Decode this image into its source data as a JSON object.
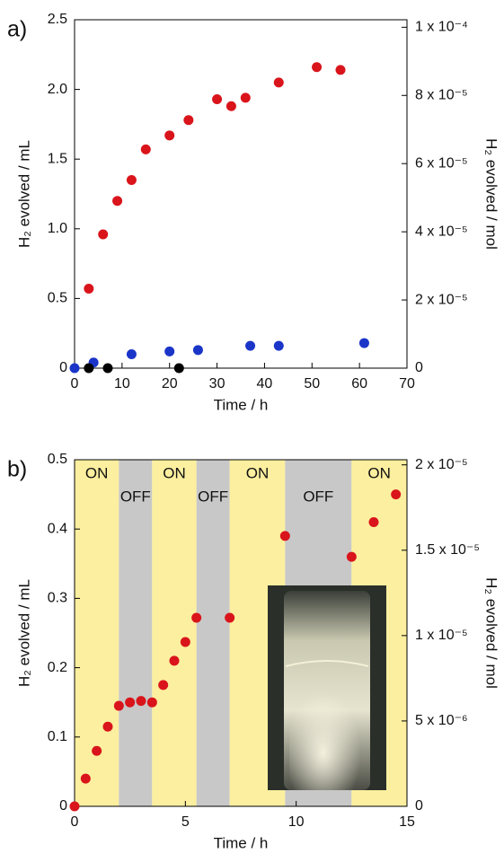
{
  "chart_data": [
    {
      "type": "scatter",
      "panel_label": "a)",
      "xlabel": "Time / h",
      "ylabel": "H₂ evolved / mL",
      "y2label": "H₂ evolved / mol",
      "xlim": [
        0,
        70
      ],
      "xticks": [
        0,
        10,
        20,
        30,
        40,
        50,
        60,
        70
      ],
      "ylim": [
        0,
        2.5
      ],
      "yticks": [
        0,
        0.5,
        {
          "value": 1,
          "label": "1.0"
        },
        1.5,
        {
          "value": 2,
          "label": "2.0"
        },
        2.5
      ],
      "y2lim": [
        0,
        0.0001022
      ],
      "y2ticks": [
        0,
        {
          "value": 2e-05,
          "label": "2 x 10⁻⁵"
        },
        {
          "value": 4e-05,
          "label": "4 x 10⁻⁵"
        },
        {
          "value": 6e-05,
          "label": "6 x 10⁻⁵"
        },
        {
          "value": 8e-05,
          "label": "8 x 10⁻⁵"
        },
        {
          "value": 0.0001,
          "label": "1 x 10⁻⁴"
        }
      ],
      "series": [
        {
          "color": "#d9141b",
          "x": [
            3,
            6,
            9,
            12,
            15,
            20,
            24,
            30,
            33,
            36,
            43,
            51,
            56
          ],
          "values": [
            0.57,
            0.96,
            1.2,
            1.35,
            1.57,
            1.67,
            1.78,
            1.93,
            1.88,
            1.94,
            2.05,
            2.16,
            2.14
          ]
        },
        {
          "color": "#1a35c8",
          "x": [
            0,
            4,
            12,
            20,
            26,
            37,
            43,
            61
          ],
          "values": [
            0,
            0.04,
            0.1,
            0.12,
            0.13,
            0.16,
            0.16,
            0.18
          ]
        },
        {
          "color": "#000000",
          "x": [
            3,
            7,
            22
          ],
          "values": [
            0,
            0,
            0
          ]
        }
      ]
    },
    {
      "type": "scatter",
      "panel_label": "b)",
      "xlabel": "Time / h",
      "ylabel": "H₂ evolved / mL",
      "y2label": "H₂ evolved / mol",
      "xlim": [
        0,
        15
      ],
      "xticks": [
        0,
        5,
        10,
        15
      ],
      "ylim": [
        0,
        0.5
      ],
      "yticks": [
        0,
        0.1,
        0.2,
        0.3,
        0.4,
        0.5
      ],
      "y2lim": [
        0,
        2.03e-05
      ],
      "y2ticks": [
        0,
        {
          "value": 5e-06,
          "label": "5 x 10⁻⁶"
        },
        {
          "value": 1e-05,
          "label": "1 x 10⁻⁵"
        },
        {
          "value": 1.5e-05,
          "label": "1.5 x 10⁻⁵"
        },
        {
          "value": 2e-05,
          "label": "2 x 10⁻⁵"
        }
      ],
      "regions": [
        {
          "start": 0,
          "end": 2,
          "label": "ON",
          "color": "#fcef9f",
          "label_color": "#e0201b"
        },
        {
          "start": 2,
          "end": 3.5,
          "label": "OFF",
          "color": "#c8c8c8",
          "label_color": "#000000"
        },
        {
          "start": 3.5,
          "end": 5.5,
          "label": "ON",
          "color": "#fcef9f",
          "label_color": "#e0201b"
        },
        {
          "start": 5.5,
          "end": 7,
          "label": "OFF",
          "color": "#c8c8c8",
          "label_color": "#000000"
        },
        {
          "start": 7,
          "end": 9.5,
          "label": "ON",
          "color": "#fcef9f",
          "label_color": "#e0201b"
        },
        {
          "start": 9.5,
          "end": 12.5,
          "label": "OFF",
          "color": "#c8c8c8",
          "label_color": "#000000"
        },
        {
          "start": 12.5,
          "end": 15,
          "label": "ON",
          "color": "#fcef9f",
          "label_color": "#e0201b"
        }
      ],
      "series": [
        {
          "color": "#d9141b",
          "x": [
            0,
            0.5,
            1,
            1.5,
            2,
            2.5,
            3,
            3.5,
            4,
            4.5,
            5,
            5.5,
            7,
            9.5,
            12.5,
            13.5,
            14.5
          ],
          "values": [
            0,
            0.04,
            0.08,
            0.115,
            0.145,
            0.15,
            0.152,
            0.15,
            0.175,
            0.21,
            0.237,
            0.272,
            0.272,
            0.39,
            0.36,
            0.41,
            0.45
          ]
        }
      ]
    }
  ]
}
